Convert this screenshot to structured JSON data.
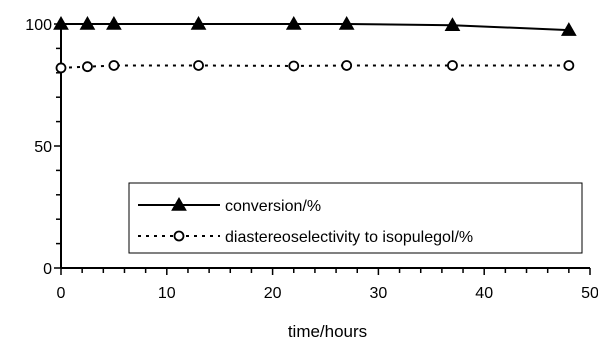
{
  "chart_data": {
    "type": "line",
    "title": "",
    "xlabel": "time/hours",
    "ylabel": "",
    "xlim": [
      0,
      50
    ],
    "ylim": [
      0,
      100
    ],
    "xticks": [
      0,
      10,
      20,
      30,
      40,
      50
    ],
    "yticks": [
      0,
      50,
      100
    ],
    "x_minor_step": 2,
    "y_minor_step": 10,
    "grid": false,
    "legend_position": "lower-right",
    "series": [
      {
        "name": "conversion/%",
        "marker": "filled-triangle",
        "line_style": "solid",
        "color": "#000000",
        "x": [
          0,
          2.5,
          5,
          13,
          22,
          27,
          37,
          48
        ],
        "y": [
          100,
          100,
          100,
          100,
          100,
          100,
          99.5,
          97.5
        ]
      },
      {
        "name": "diastereoselectivity to isopulegol/%",
        "marker": "open-circle",
        "line_style": "dotted",
        "color": "#000000",
        "x": [
          0,
          2.5,
          5,
          13,
          22,
          27,
          37,
          48
        ],
        "y": [
          82,
          82.5,
          83,
          83,
          82.8,
          83,
          83,
          83
        ]
      }
    ]
  }
}
